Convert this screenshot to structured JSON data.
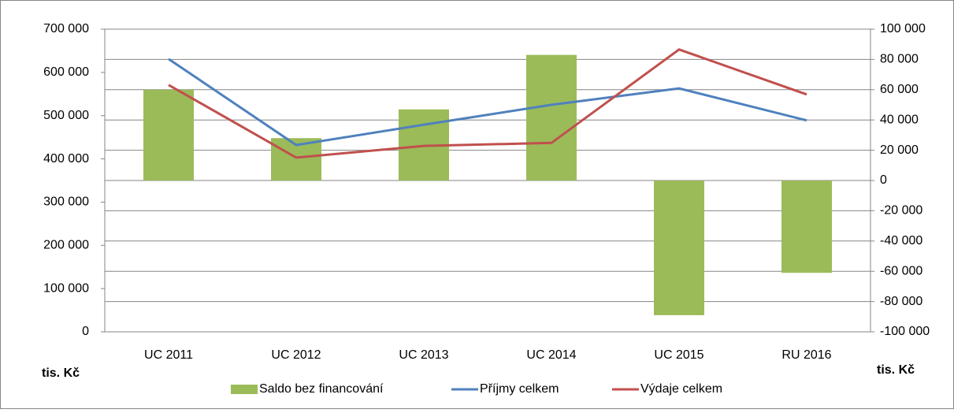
{
  "chart_data": {
    "type": "bar-line",
    "categories": [
      "UC 2011",
      "UC 2012",
      "UC 2013",
      "UC 2014",
      "UC 2015",
      "RU 2016"
    ],
    "series": [
      {
        "name": "Saldo bez financování",
        "type": "bar",
        "axis": "y2",
        "color": "#9bbb59",
        "values": [
          60000,
          28000,
          47000,
          83000,
          -89000,
          -61000
        ]
      },
      {
        "name": "Příjmy celkem",
        "type": "line",
        "axis": "y",
        "color": "#4f81bd",
        "values": [
          631000,
          432000,
          479000,
          525000,
          563000,
          489000
        ]
      },
      {
        "name": "Výdaje celkem",
        "type": "line",
        "axis": "y",
        "color": "#c0504d",
        "values": [
          571000,
          403000,
          430000,
          437000,
          653000,
          549000
        ]
      }
    ],
    "ylim": [
      0,
      700000
    ],
    "yticks": [
      0,
      {
        "value": 100000,
        "label": "100 000"
      },
      {
        "value": 200000,
        "label": "200 000"
      },
      {
        "value": 300000,
        "label": "300 000"
      },
      {
        "value": 400000,
        "label": "400 000"
      },
      {
        "value": 500000,
        "label": "500 000"
      },
      {
        "value": 600000,
        "label": "600 000"
      },
      {
        "value": 700000,
        "label": "700 000"
      }
    ],
    "y2lim": [
      -100000,
      100000
    ],
    "y2ticks": [
      {
        "value": -100000,
        "label": "-100 000"
      },
      {
        "value": -80000,
        "label": "-80 000"
      },
      {
        "value": -60000,
        "label": "-60 000"
      },
      {
        "value": -40000,
        "label": "-40 000"
      },
      {
        "value": -20000,
        "label": "-20 000"
      },
      0,
      {
        "value": 20000,
        "label": "20 000"
      },
      {
        "value": 40000,
        "label": "40 000"
      },
      {
        "value": 60000,
        "label": "60 000"
      },
      {
        "value": 80000,
        "label": "80 000"
      },
      {
        "value": 100000,
        "label": "100 000"
      }
    ],
    "y_label": "tis. Kč",
    "y2_label": "tis. Kč",
    "grid": true,
    "legend": "bottom"
  }
}
